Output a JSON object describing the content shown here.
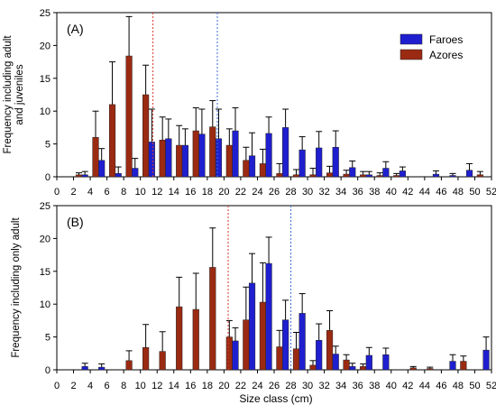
{
  "colors": {
    "faroes": "#1f1fd0",
    "azores": "#9b2a12",
    "faroes_mean_line": "#3a6fd8",
    "azores_mean_line": "#d43a2a"
  },
  "shared_xlabel": "Size class (cm)",
  "chart_data": [
    {
      "type": "bar",
      "panel_label": "(A)",
      "ylabel": "Frequency including adult and juveniles",
      "ylabel_lines": [
        "Frequency including adult",
        "and juveniles"
      ],
      "xlabel": "Size class (cm)",
      "xlim": [
        0,
        52
      ],
      "ylim": [
        0,
        25
      ],
      "x_ticks": [
        0,
        2,
        4,
        6,
        8,
        10,
        12,
        14,
        16,
        18,
        20,
        22,
        24,
        26,
        28,
        30,
        32,
        34,
        36,
        38,
        40,
        42,
        44,
        46,
        48,
        50,
        52
      ],
      "y_ticks": [
        0,
        5,
        10,
        15,
        20,
        25
      ],
      "legend_position": "top-right",
      "mean_lines": [
        {
          "series": "Azores",
          "x": 11.5
        },
        {
          "series": "Faroes",
          "x": 19.2
        }
      ],
      "categories": [
        3,
        5,
        7,
        9,
        11,
        13,
        15,
        17,
        19,
        21,
        23,
        25,
        27,
        29,
        31,
        33,
        35,
        37,
        39,
        41,
        43,
        45,
        47,
        49,
        51
      ],
      "series": [
        {
          "name": "Faroes",
          "values": [
            0.3,
            2.5,
            0.5,
            1.3,
            5.3,
            5.8,
            4.8,
            6.5,
            5.8,
            7.0,
            3.2,
            6.6,
            7.5,
            4.1,
            4.4,
            4.5,
            1.4,
            0.3,
            1.3,
            0.9,
            0.0,
            0.4,
            0.2,
            1.0,
            0.0
          ],
          "errors": [
            0.5,
            1.8,
            1.0,
            1.5,
            5.0,
            3.0,
            2.5,
            3.8,
            4.5,
            3.5,
            3.5,
            2.5,
            2.8,
            2.0,
            2.5,
            2.5,
            1.0,
            0.5,
            1.0,
            0.6,
            0.0,
            0.5,
            0.3,
            1.0,
            0.0
          ]
        },
        {
          "name": "Azores",
          "values": [
            0.3,
            6.0,
            11.0,
            18.4,
            12.5,
            5.6,
            4.8,
            7.0,
            7.6,
            4.8,
            2.5,
            2.0,
            0.5,
            0.3,
            0.3,
            0.6,
            0.4,
            0.3,
            0.2,
            0.2,
            0.0,
            0.0,
            0.0,
            0.0,
            0.3
          ],
          "errors": [
            0.3,
            4.0,
            6.5,
            6.0,
            4.5,
            3.5,
            3.0,
            3.5,
            4.0,
            2.5,
            2.0,
            2.2,
            1.5,
            0.8,
            1.0,
            1.0,
            0.6,
            0.5,
            0.4,
            0.3,
            0.0,
            0.0,
            0.0,
            0.0,
            0.5
          ]
        }
      ]
    },
    {
      "type": "bar",
      "panel_label": "(B)",
      "ylabel": "Frequency including only adult",
      "xlabel": "Size class (cm)",
      "xlim": [
        0,
        52
      ],
      "ylim": [
        0,
        25
      ],
      "x_ticks": [
        0,
        2,
        4,
        6,
        8,
        10,
        12,
        14,
        16,
        18,
        20,
        22,
        24,
        26,
        28,
        30,
        32,
        34,
        36,
        38,
        40,
        42,
        44,
        46,
        48,
        50,
        52
      ],
      "y_ticks": [
        0,
        5,
        10,
        15,
        20,
        25
      ],
      "mean_lines": [
        {
          "series": "Azores",
          "x": 20.5
        },
        {
          "series": "Faroes",
          "x": 28.0
        }
      ],
      "categories": [
        3,
        5,
        7,
        9,
        11,
        13,
        15,
        17,
        19,
        21,
        23,
        25,
        27,
        29,
        31,
        33,
        35,
        37,
        39,
        41,
        43,
        45,
        47,
        49,
        51
      ],
      "series": [
        {
          "name": "Faroes",
          "values": [
            0.5,
            0.4,
            0.0,
            0.0,
            0.0,
            0.0,
            0.0,
            0.0,
            0.0,
            4.4,
            13.2,
            16.2,
            7.6,
            8.6,
            4.5,
            2.4,
            0.5,
            2.2,
            2.3,
            0.0,
            0.0,
            0.0,
            1.3,
            0.0,
            3.0
          ],
          "errors": [
            0.5,
            0.5,
            0.0,
            0.0,
            0.0,
            0.0,
            0.0,
            0.0,
            0.0,
            2.0,
            4.5,
            4.0,
            3.0,
            3.0,
            2.5,
            1.2,
            0.5,
            1.2,
            1.0,
            0.0,
            0.0,
            0.0,
            1.0,
            0.0,
            2.0
          ]
        },
        {
          "name": "Azores",
          "values": [
            0.0,
            0.0,
            0.0,
            1.4,
            3.4,
            2.8,
            9.6,
            9.2,
            15.6,
            5.0,
            7.6,
            10.3,
            3.5,
            3.2,
            0.7,
            6.0,
            1.5,
            0.5,
            0.0,
            0.0,
            0.3,
            0.2,
            0.0,
            1.3,
            0.0
          ],
          "errors": [
            0.0,
            0.0,
            0.0,
            1.5,
            3.5,
            3.0,
            4.5,
            5.5,
            6.0,
            2.5,
            5.0,
            6.0,
            2.5,
            2.5,
            0.7,
            3.0,
            0.8,
            0.4,
            0.0,
            0.0,
            0.2,
            0.2,
            0.0,
            0.8,
            0.0
          ]
        }
      ]
    }
  ]
}
